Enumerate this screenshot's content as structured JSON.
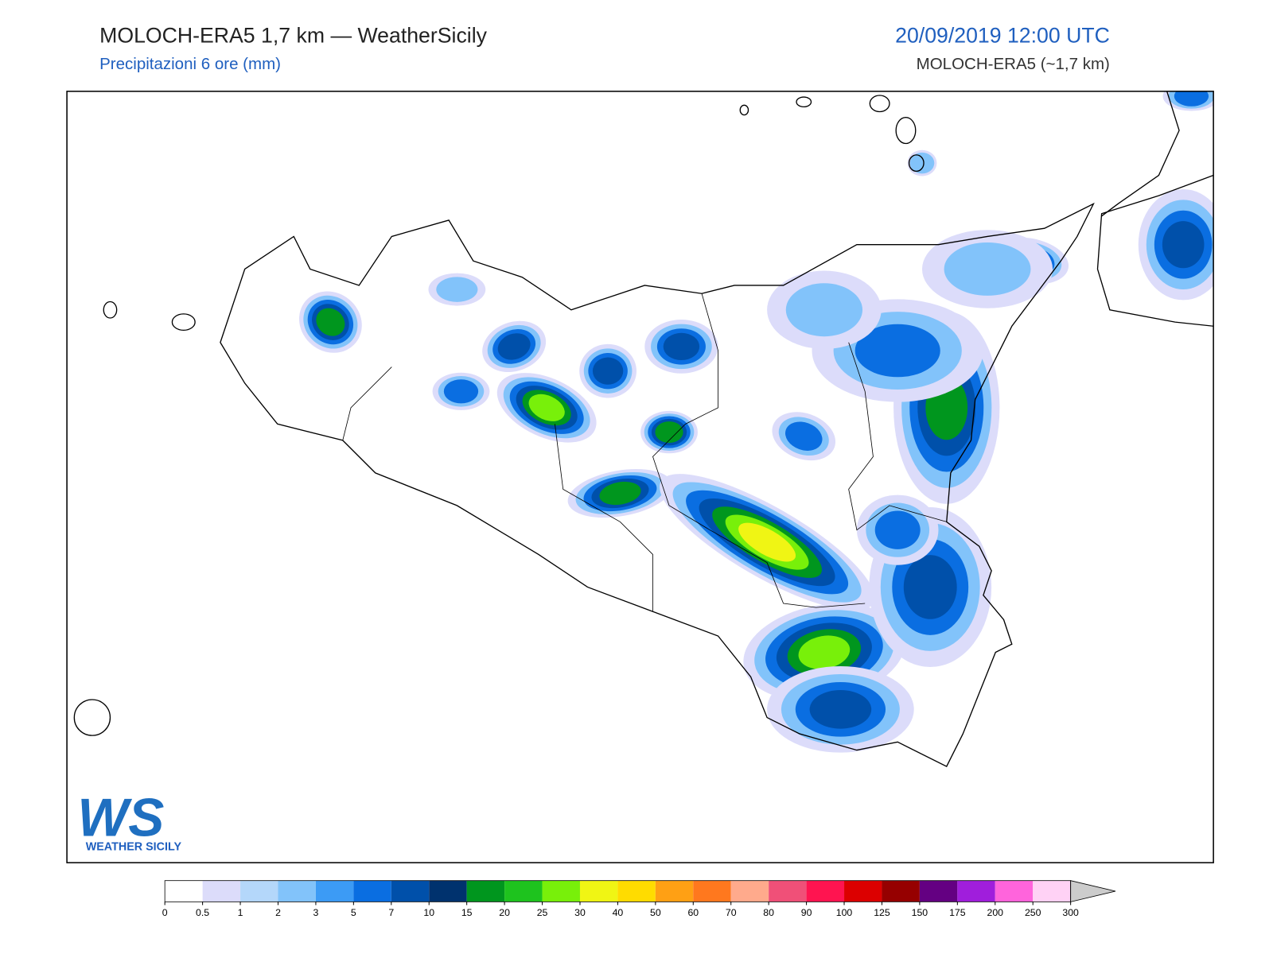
{
  "header": {
    "title": "MOLOCH-ERA5 1,7 km — WeatherSicily",
    "subtitle": "Precipitazioni 6 ore (mm)",
    "date": "20/09/2019 12:00 UTC",
    "model": "MOLOCH-ERA5 (~1,7 km)"
  },
  "logo": {
    "mark": "WS",
    "text": "WEATHER SICILY"
  },
  "colorbar": {
    "ticks": [
      0,
      0.5,
      1,
      2,
      3,
      5,
      7,
      10,
      15,
      20,
      25,
      30,
      40,
      50,
      60,
      70,
      80,
      90,
      100,
      125,
      150,
      175,
      200,
      250,
      300
    ],
    "colors": [
      "#ffffff",
      "#dcdcfa",
      "#b4d7fa",
      "#82c3fa",
      "#3c9bf5",
      "#0a6ee1",
      "#0050aa",
      "#00326e",
      "#00961e",
      "#1ec31e",
      "#78f00a",
      "#f0f514",
      "#ffdc00",
      "#ffa014",
      "#ff781e",
      "#ffaa8c",
      "#f05078",
      "#ff1450",
      "#dc0000",
      "#960000",
      "#640082",
      "#a01edc",
      "#ff64dc",
      "#ffd2f5"
    ],
    "over_color": "#cccccc"
  }
}
